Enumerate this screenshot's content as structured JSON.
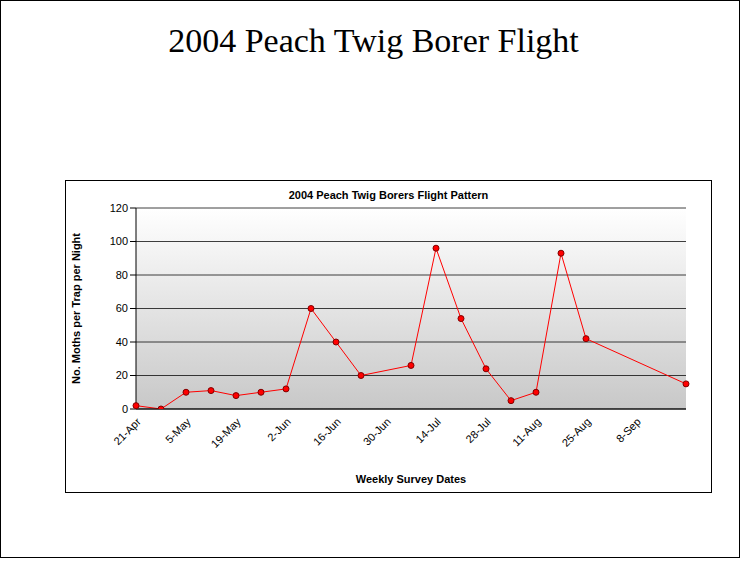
{
  "title": "2004 Peach Twig Borer Flight",
  "chart_data": {
    "type": "line",
    "title": "2004 Peach Twig Borers Flight Pattern",
    "x_label": "Weekly Survey Dates",
    "y_label": "No. Moths per Trap per Night",
    "categories": [
      "21-Apr",
      null,
      "5-May",
      null,
      "19-May",
      null,
      "2-Jun",
      null,
      "16-Jun",
      null,
      "30-Jun",
      null,
      "14-Jul",
      null,
      "28-Jul",
      null,
      "11-Aug",
      null,
      "25-Aug",
      null,
      "8-Sep",
      null,
      null
    ],
    "values": [
      2,
      0,
      10,
      11,
      8,
      10,
      12,
      60,
      40,
      20,
      null,
      26,
      96,
      54,
      24,
      5,
      10,
      93,
      42,
      null,
      null,
      null,
      15
    ],
    "color": "#ff0000",
    "marker": "circle",
    "line_style": "solid",
    "ylim": [
      0,
      120
    ],
    "yticks": [
      0,
      20,
      40,
      60,
      80,
      100,
      120
    ],
    "grid": true
  }
}
